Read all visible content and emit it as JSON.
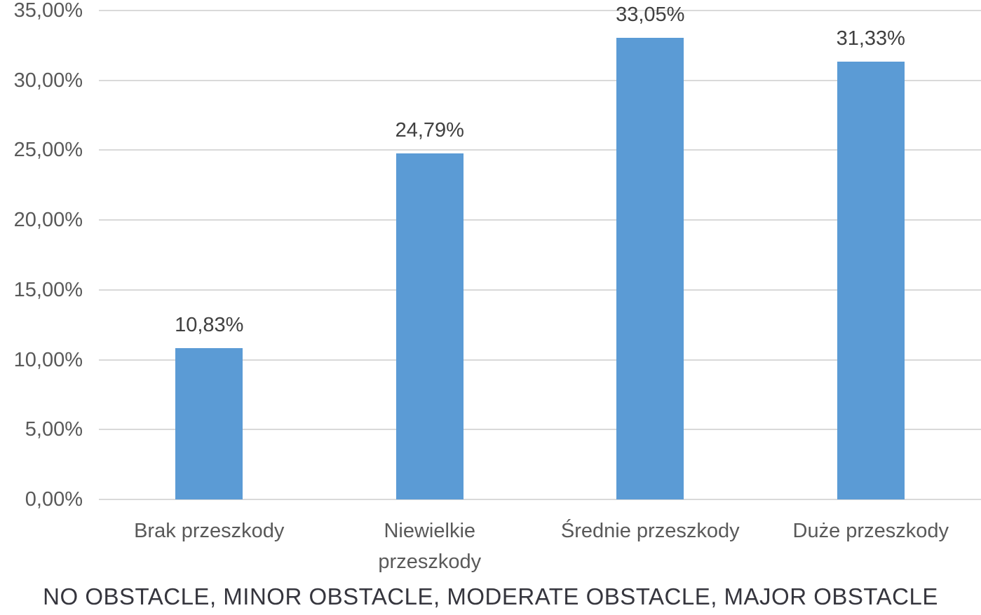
{
  "chart_data": {
    "type": "bar",
    "title": "",
    "categories": [
      "Brak przeszkody",
      "Niewielkie\nprzeszkody",
      "Średnie przeszkody",
      "Duże przeszkody"
    ],
    "values": [
      10.83,
      24.79,
      33.05,
      31.33
    ],
    "data_labels": [
      "10,83%",
      "24,79%",
      "33,05%",
      "31,33%"
    ],
    "y_tick_values": [
      0,
      5,
      10,
      15,
      20,
      25,
      30,
      35
    ],
    "y_tick_labels": [
      "0,00%",
      "5,00%",
      "10,00%",
      "15,00%",
      "20,00%",
      "25,00%",
      "30,00%",
      "35,00%"
    ],
    "ylim": [
      0,
      35
    ],
    "grid": true,
    "legend": false,
    "xlabel": "",
    "ylabel": "",
    "caption": "NO OBSTACLE, MINOR OBSTACLE, MODERATE OBSTACLE, MAJOR OBSTACLE"
  },
  "colors": {
    "bar": "#5b9bd5",
    "gridline": "#d9d9d9",
    "axis_text": "#595959",
    "data_label_text": "#404040",
    "caption_text": "#35353d"
  }
}
